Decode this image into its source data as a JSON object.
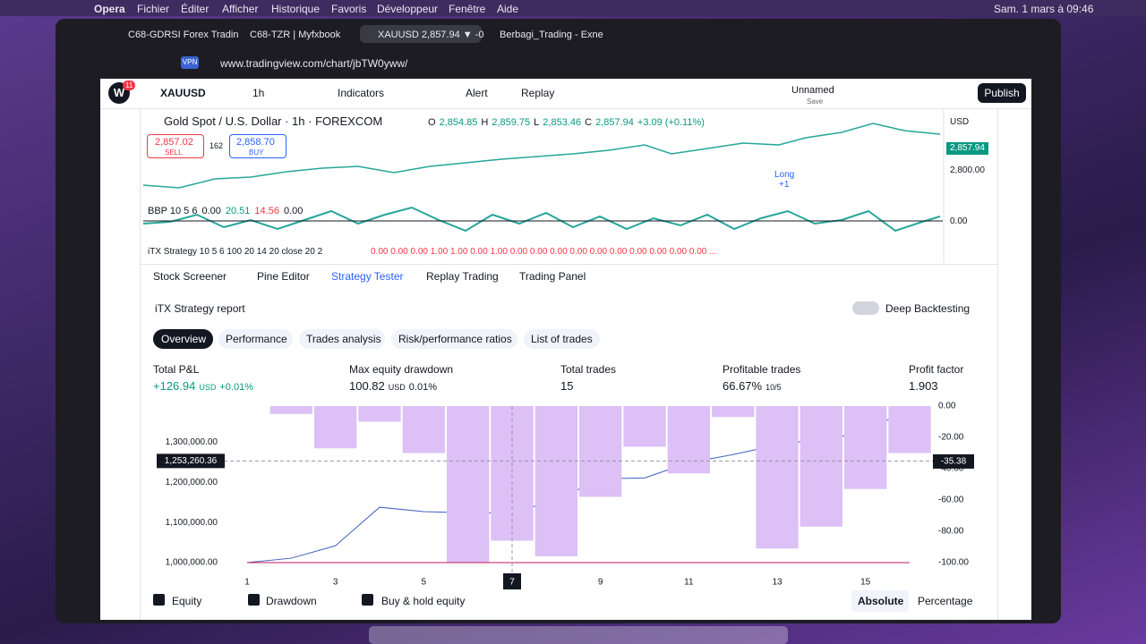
{
  "menu_bar": {
    "app": "Opera",
    "items": [
      "Fichier",
      "Éditer",
      "Afficher",
      "Historique",
      "Favoris",
      "Développeur",
      "Fenêtre",
      "Aide"
    ],
    "clock": "Sam. 1 mars à 09:46"
  },
  "tabs": [
    "C68-GDRSI Forex Tradin",
    "C68-TZR | Myfxbook",
    "XAUUSD 2,857.94 ▼ -0",
    "Berbagi_Trading - Exne"
  ],
  "address_bar": {
    "vpn": "VPN",
    "url": "www.tradingview.com/chart/jbTW0yww/"
  },
  "toolbar": {
    "badge": "11",
    "symbol": "XAUUSD",
    "interval": "1h",
    "indicators": "Indicators",
    "alert": "Alert",
    "replay": "Replay",
    "layout": "Unnamed",
    "save": "Save",
    "publish": "Publish"
  },
  "chart": {
    "title": "Gold Spot / U.S. Dollar · 1h · FOREXCOM",
    "ohlc": [
      {
        "key": "O",
        "value": "2,854.85"
      },
      {
        "key": "H",
        "value": "2,859.75"
      },
      {
        "key": "L",
        "value": "2,853.46"
      },
      {
        "key": "C",
        "value": "2,857.94"
      }
    ],
    "change": "+3.09 (+0.11%)",
    "sell_price": "2,857.02",
    "sell": "SELL",
    "spread": "162",
    "buy_price": "2,858.70",
    "buy": "BUY",
    "currency": "USD",
    "last_price": "2,857.94",
    "price_tick": "2,800.00",
    "signal": "Long",
    "signal_qty": "+1",
    "indicator": "BBP 10 5 6",
    "indicator_values": [
      "0.00",
      "20.51",
      "14.56",
      "0.00"
    ],
    "indicator_tick": "0.00",
    "strategy": "iTX Strategy 10 5 6 100 20 14 20 close 20 2",
    "strategy_values": "0.00 0.00 0.00 1.00 1.00 0.00 1.00 0.00 0.00 0.00 0.00 0.00 0.00 0.00 0.00 0.00 0.00 ..."
  },
  "panel": {
    "tabs": [
      "Stock Screener",
      "Pine Editor",
      "Strategy Tester",
      "Replay Trading",
      "Trading Panel"
    ],
    "report": "iTX Strategy report",
    "deep_backtesting": "Deep Backtesting",
    "subtabs": [
      "Overview",
      "Performance",
      "Trades analysis",
      "Risk/performance ratios",
      "List of trades"
    ],
    "metrics": [
      {
        "label": "Total P&L",
        "value": "+126.94",
        "unit": "USD",
        "extra": "+0.01%"
      },
      {
        "label": "Max equity drawdown",
        "value": "100.82",
        "unit": "USD",
        "extra": "0.01%"
      },
      {
        "label": "Total trades",
        "value": "15"
      },
      {
        "label": "Profitable trades",
        "value": "66.67%",
        "extra": "10/5"
      },
      {
        "label": "Profit factor",
        "value": "1.903"
      }
    ]
  },
  "equity_chart": {
    "type": "bar+line",
    "xlim": [
      1,
      16
    ],
    "xticks": [
      1,
      3,
      5,
      7,
      9,
      11,
      13,
      15
    ],
    "x_highlight": 7,
    "ylim": [
      1000000,
      1390000
    ],
    "yticks": [
      {
        "value": 1000000,
        "label": "1,000,000.00"
      },
      {
        "value": 1100000,
        "label": "1,100,000.00"
      },
      {
        "value": 1200000,
        "label": "1,200,000.00"
      },
      {
        "value": 1300000,
        "label": "1,300,000.00"
      }
    ],
    "y2lim": [
      -100,
      0
    ],
    "y2ticks": [
      {
        "value": 0,
        "label": "0.00"
      },
      {
        "value": -20,
        "label": "-20.00"
      },
      {
        "value": -40,
        "label": "-40.00"
      },
      {
        "value": -60,
        "label": "-60.00"
      },
      {
        "value": -80,
        "label": "-80.00"
      },
      {
        "value": -100,
        "label": "-100.00"
      }
    ],
    "crosshair": {
      "value": 1253260.36,
      "label": "1,253,260.36",
      "value2": -35.38,
      "label2": "-35.38"
    },
    "series": [
      {
        "name": "Equity",
        "color": "#3f5fbf",
        "x": [
          1,
          2,
          3,
          4,
          5,
          6,
          7,
          8,
          9,
          10,
          11,
          12,
          13,
          14,
          15,
          16
        ],
        "values": [
          1000000,
          1011000,
          1042000,
          1138000,
          1127000,
          1124000,
          1124000,
          1156000,
          1209000,
          1211000,
          1249000,
          1269000,
          1293000,
          1309000,
          1322000,
          1389000
        ]
      },
      {
        "name": "Drawdown",
        "color": "#dcc0f6",
        "axis": "y2",
        "x": [
          2,
          3,
          4,
          5,
          6,
          7,
          8,
          9,
          10,
          11,
          12,
          13,
          14,
          15,
          16
        ],
        "values": [
          -5,
          -27,
          -10,
          -30,
          -100,
          -86,
          -96,
          -58,
          -26,
          -43,
          -7,
          -91,
          -77,
          -53,
          -30
        ]
      },
      {
        "name": "Buy & hold equity",
        "color": "#c2185b",
        "x": [
          1,
          16
        ],
        "values": [
          1000000,
          1000000
        ]
      }
    ],
    "modes": [
      "Absolute",
      "Percentage"
    ]
  }
}
